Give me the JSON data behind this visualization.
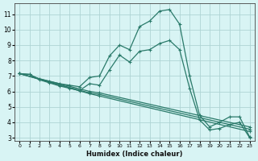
{
  "xlabel": "Humidex (Indice chaleur)",
  "background_color": "#d8f4f4",
  "grid_color": "#afd4d4",
  "line_color": "#2a7a6a",
  "xlim": [
    -0.5,
    23.5
  ],
  "ylim": [
    2.8,
    11.7
  ],
  "yticks": [
    3,
    4,
    5,
    6,
    7,
    8,
    9,
    10,
    11
  ],
  "xticks": [
    0,
    1,
    2,
    3,
    4,
    5,
    6,
    7,
    8,
    9,
    10,
    11,
    12,
    13,
    14,
    15,
    16,
    17,
    18,
    19,
    20,
    21,
    22,
    23
  ],
  "lines": [
    {
      "x": [
        0,
        1,
        2,
        3,
        4,
        5,
        6,
        7,
        8,
        9,
        10,
        11,
        12,
        13,
        14,
        15,
        16,
        17,
        18,
        19,
        20,
        21,
        22,
        23
      ],
      "y": [
        7.15,
        7.1,
        6.8,
        6.65,
        6.5,
        6.4,
        6.3,
        6.9,
        7.0,
        8.3,
        9.0,
        8.7,
        10.2,
        10.55,
        11.2,
        11.3,
        10.35,
        7.0,
        4.45,
        3.7,
        4.0,
        4.35,
        4.35,
        3.05
      ]
    },
    {
      "x": [
        0,
        1,
        2,
        3,
        4,
        5,
        6,
        7,
        8,
        9,
        10,
        11,
        12,
        13,
        14,
        15,
        16,
        17,
        18,
        19,
        20,
        21,
        22,
        23
      ],
      "y": [
        7.15,
        7.1,
        6.75,
        6.55,
        6.35,
        6.2,
        6.05,
        6.5,
        6.4,
        7.4,
        8.35,
        7.9,
        8.6,
        8.7,
        9.1,
        9.3,
        8.7,
        6.2,
        4.15,
        3.5,
        3.6,
        3.85,
        4.0,
        3.0
      ]
    },
    {
      "x": [
        0,
        7,
        8,
        23
      ],
      "y": [
        7.15,
        6.0,
        5.9,
        3.7
      ]
    },
    {
      "x": [
        0,
        7,
        8,
        23
      ],
      "y": [
        7.15,
        5.9,
        5.8,
        3.55
      ]
    },
    {
      "x": [
        0,
        7,
        8,
        23
      ],
      "y": [
        7.15,
        5.85,
        5.7,
        3.4
      ]
    }
  ]
}
